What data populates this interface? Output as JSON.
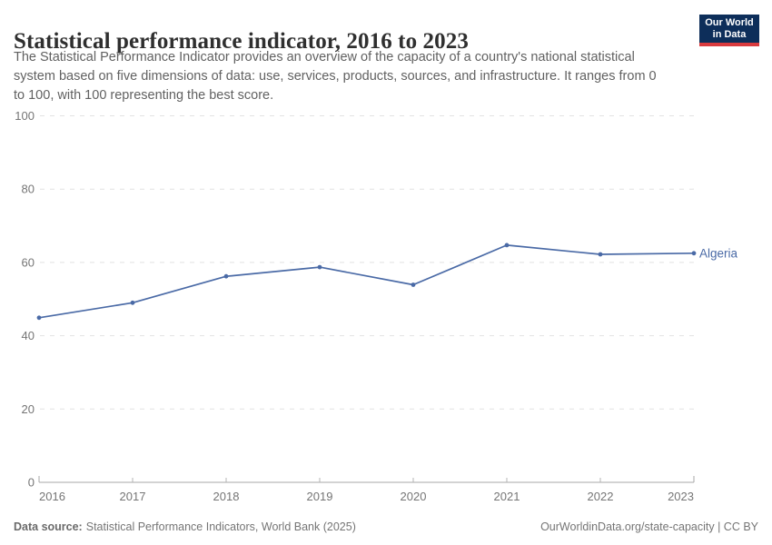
{
  "header": {
    "title": "Statistical performance indicator, 2016 to 2023",
    "subtitle_lines": [
      "The Statistical Performance Indicator provides an overview of the capacity of a country's national statistical",
      "system based on five dimensions of data: use, services, products, sources, and infrastructure. It ranges from 0",
      "to 100, with 100 representing the best score."
    ],
    "logo": {
      "line1": "Our World",
      "line2": "in Data",
      "bg_color": "#0d2e5a",
      "accent_color": "#d93a3e"
    }
  },
  "chart_data": {
    "type": "line",
    "title": "Statistical performance indicator, 2016 to 2023",
    "xlabel": "",
    "ylabel": "",
    "x": [
      2016,
      2017,
      2018,
      2019,
      2020,
      2021,
      2022,
      2023
    ],
    "series": [
      {
        "name": "Algeria",
        "color": "#4a6aa6",
        "values": [
          44.9,
          49.0,
          56.2,
          58.7,
          53.9,
          64.7,
          62.2,
          62.5
        ]
      }
    ],
    "ylim": [
      0,
      100
    ],
    "y_ticks": [
      0,
      20,
      40,
      60,
      80,
      100
    ],
    "x_ticks": [
      2016,
      2017,
      2018,
      2019,
      2020,
      2021,
      2022,
      2023
    ],
    "grid": "horizontal-dashed",
    "legend_position": "end-of-line-label",
    "end_label": "Algeria"
  },
  "footer": {
    "source_prefix": "Data source:",
    "source_text": "Statistical Performance Indicators, World Bank (2025)",
    "credit": "OurWorldinData.org/state-capacity | CC BY"
  },
  "colors": {
    "series_line": "#4a6aa6",
    "gridline": "#e2e2e2",
    "axis_line": "#a7a7a7",
    "tick_mark": "#b5b5b5",
    "axis_text": "#757575",
    "title_text": "#2f2f2f",
    "subtitle_text": "#616161"
  }
}
